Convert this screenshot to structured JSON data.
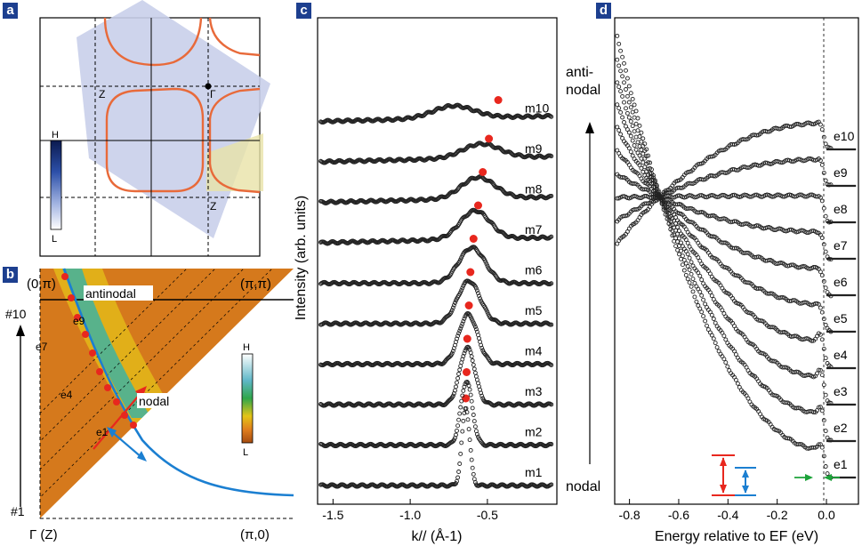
{
  "panel_labels": [
    "a",
    "b",
    "c",
    "d"
  ],
  "colors": {
    "panel_label_bg": "#1d3f8f",
    "fermi_surface": "#e86a3a",
    "marker_red": "#e8271e",
    "arrow_blue": "#1b7fd1",
    "arrow_green": "#1da33a",
    "data_points": "#222222"
  },
  "panel_a": {
    "labels": {
      "z1": "Z",
      "gamma": "Γ",
      "z2": "Z"
    },
    "colorbar": {
      "high": "H",
      "low": "L"
    }
  },
  "panel_b": {
    "corner_labels": {
      "top_left": "(0,π)",
      "top_right": "(π,π)",
      "bottom_left": "Γ (Z)",
      "bottom_right": "(π,0)"
    },
    "cut_labels": {
      "top": "#10",
      "bottom": "#1"
    },
    "region_labels": {
      "antinodal": "antinodal",
      "nodal": "nodal"
    },
    "point_labels": [
      "e9",
      "e7",
      "e4",
      "e1"
    ],
    "colorbar": {
      "high": "H",
      "low": "L"
    }
  },
  "chart_data": [
    {
      "panel": "c",
      "type": "line",
      "xlabel": "k// (Å-1)",
      "ylabel": "Intensity (arb. units)",
      "xlim": [
        -1.6,
        -0.05
      ],
      "xticks": [
        "-1.5",
        "-1.0",
        "-0.5"
      ],
      "xtick_values": [
        -1.5,
        -1.0,
        -0.5
      ],
      "series": [
        {
          "name": "m1",
          "peak_k": -0.64,
          "marker_k": -0.64
        },
        {
          "name": "m2",
          "peak_k": -0.635,
          "marker_k": -0.635
        },
        {
          "name": "m3",
          "peak_k": -0.63,
          "marker_k": -0.63
        },
        {
          "name": "m4",
          "peak_k": -0.625,
          "marker_k": -0.62
        },
        {
          "name": "m5",
          "peak_k": -0.62,
          "marker_k": -0.61
        },
        {
          "name": "m6",
          "peak_k": -0.6,
          "marker_k": -0.59
        },
        {
          "name": "m7",
          "peak_k": -0.58,
          "marker_k": -0.56
        },
        {
          "name": "m8",
          "peak_k": -0.56,
          "marker_k": -0.53
        },
        {
          "name": "m9",
          "peak_k": -0.54,
          "marker_k": -0.49
        },
        {
          "name": "m10",
          "peak_k": -0.72,
          "marker_k": -0.43
        }
      ]
    },
    {
      "panel": "d",
      "type": "line",
      "xlabel": "Energy relative to EF (eV)",
      "xlim": [
        -0.86,
        0.13
      ],
      "xticks": [
        "-0.8",
        "-0.6",
        "-0.4",
        "-0.2",
        "0.0"
      ],
      "xtick_values": [
        -0.8,
        -0.6,
        -0.4,
        -0.2,
        0.0
      ],
      "series": [
        {
          "name": "e1"
        },
        {
          "name": "e2"
        },
        {
          "name": "e3"
        },
        {
          "name": "e4"
        },
        {
          "name": "e5"
        },
        {
          "name": "e6"
        },
        {
          "name": "e7"
        },
        {
          "name": "e8"
        },
        {
          "name": "e9"
        },
        {
          "name": "e10"
        }
      ],
      "annotations": {
        "top": "anti-\nnodal",
        "bottom": "nodal"
      }
    }
  ]
}
